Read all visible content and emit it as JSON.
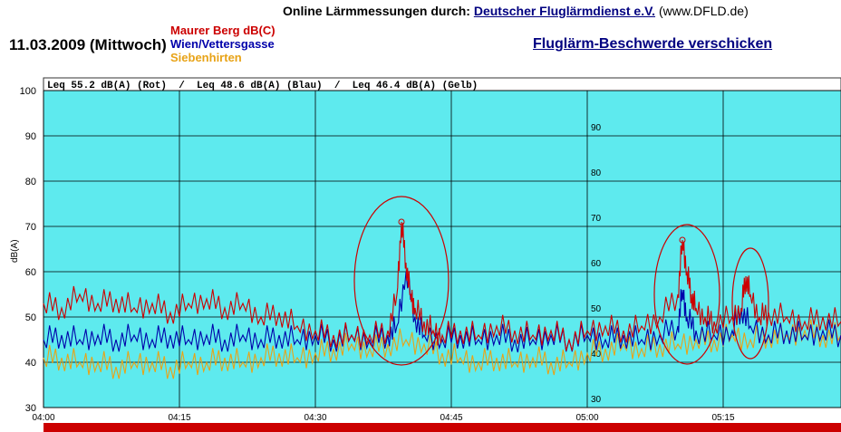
{
  "header": {
    "title_prefix": "Online Lärmmessungen durch:",
    "org_link": "Deutscher Fluglärmdienst e.V.",
    "org_url": "(www.DFLD.de)",
    "date": "11.03.2009 (Mittwoch)",
    "complaint_link": "Fluglärm-Beschwerde verschicken"
  },
  "legend": [
    {
      "label": "Maurer Berg dB(C)",
      "color": "#cc0000"
    },
    {
      "label": "Wien/Vettersgasse",
      "color": "#0000aa"
    },
    {
      "label": "Siebenhirten",
      "color": "#e8a317"
    }
  ],
  "chart_data": {
    "type": "line",
    "leq_text": "Leq 55.2 dB(A) (Rot)  /  Leq 48.6 dB(A) (Blau)  /  Leq 46.4 dB(A) (Gelb)",
    "ylabel": "dB(A)",
    "ylim": [
      30,
      100
    ],
    "y_ticks": [
      "100",
      "90",
      "80",
      "70",
      "60",
      "50",
      "40",
      "30"
    ],
    "inner_y_ticks": [
      "90",
      "80",
      "70",
      "60",
      "50",
      "40",
      "30"
    ],
    "x_ticks": [
      "04:00",
      "04:15",
      "04:30",
      "04:45",
      "05:00",
      "05:15"
    ],
    "xlim_minutes": [
      0,
      88
    ],
    "background": "#5eeaee",
    "series": [
      {
        "name": "Maurer Berg dB(C)",
        "color": "#cc0000",
        "x": [
          0,
          2,
          4,
          6,
          8,
          10,
          12,
          14,
          16,
          18,
          20,
          22,
          24,
          26,
          28,
          30,
          32,
          34,
          36,
          38,
          39,
          39.5,
          40,
          40.5,
          41,
          42,
          43,
          44,
          46,
          48,
          50,
          52,
          54,
          56,
          58,
          60,
          62,
          64,
          66,
          68,
          70,
          70.5,
          71,
          71.5,
          72,
          73,
          74,
          76,
          77,
          77.5,
          78,
          79,
          80,
          82,
          84,
          86,
          88
        ],
        "y": [
          53,
          52,
          55,
          53,
          54,
          52,
          53,
          51,
          53,
          54,
          52,
          53,
          50,
          51,
          48,
          47,
          46,
          46,
          46,
          47,
          55,
          71,
          62,
          55,
          52,
          49,
          47,
          46,
          47,
          46,
          48,
          47,
          46,
          47,
          45,
          47,
          48,
          47,
          48,
          50,
          55,
          67,
          60,
          55,
          52,
          50,
          49,
          50,
          52,
          59,
          55,
          50,
          51,
          50,
          49,
          50,
          49
        ]
      },
      {
        "name": "Wien/Vettersgasse",
        "color": "#0000aa",
        "x": [
          0,
          2,
          4,
          6,
          8,
          10,
          12,
          14,
          16,
          18,
          20,
          22,
          24,
          26,
          28,
          30,
          32,
          34,
          36,
          38,
          39,
          40,
          41,
          42,
          44,
          46,
          48,
          50,
          52,
          54,
          56,
          58,
          60,
          62,
          64,
          66,
          68,
          70,
          70.5,
          71,
          72,
          74,
          76,
          77,
          78,
          80,
          82,
          84,
          86,
          88
        ],
        "y": [
          45,
          46,
          45,
          46,
          45,
          46,
          45,
          46,
          45,
          46,
          45,
          46,
          45,
          46,
          45,
          46,
          45,
          46,
          45,
          46,
          48,
          60,
          50,
          46,
          45,
          46,
          45,
          46,
          45,
          45,
          46,
          45,
          46,
          45,
          46,
          45,
          46,
          48,
          56,
          50,
          47,
          46,
          47,
          52,
          48,
          46,
          47,
          46,
          47,
          46
        ]
      },
      {
        "name": "Siebenhirten",
        "color": "#e8a317",
        "x": [
          0,
          2,
          4,
          6,
          8,
          10,
          12,
          14,
          16,
          18,
          20,
          22,
          24,
          26,
          28,
          30,
          32,
          34,
          36,
          38,
          40,
          42,
          44,
          46,
          48,
          50,
          52,
          54,
          56,
          58,
          60,
          62,
          64,
          66,
          68,
          70,
          72,
          74,
          76,
          78,
          80,
          82,
          84,
          86,
          88
        ],
        "y": [
          41,
          41,
          40,
          40,
          39,
          40,
          40,
          39,
          40,
          40,
          41,
          40,
          41,
          42,
          41,
          42,
          43,
          44,
          43,
          44,
          45,
          44,
          42,
          41,
          40,
          41,
          40,
          41,
          40,
          40,
          42,
          43,
          44,
          43,
          44,
          44,
          45,
          45,
          46,
          45,
          46,
          46,
          47,
          46,
          46
        ]
      }
    ],
    "markers": [
      {
        "x": 39.5,
        "y": 71
      },
      {
        "x": 70.5,
        "y": 67
      }
    ]
  }
}
